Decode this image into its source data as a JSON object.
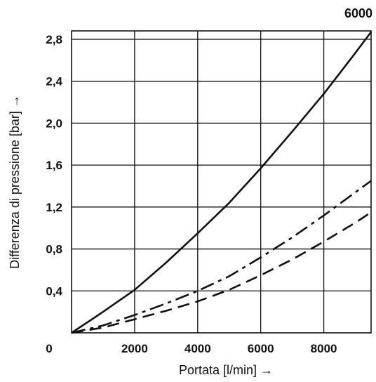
{
  "chart_data": {
    "type": "line",
    "title": "6000",
    "xlabel": "Portata [l/min] →",
    "ylabel": "Differenza di pressione [bar] →",
    "xlim": [
      0,
      9500
    ],
    "ylim": [
      0,
      2.88
    ],
    "x_ticks": [
      0,
      2000,
      4000,
      6000,
      8000
    ],
    "x_tick_labels": [
      "0",
      "2000",
      "4000",
      "6000",
      "8000"
    ],
    "y_ticks": [
      0.4,
      0.8,
      1.2,
      1.6,
      2.0,
      2.4,
      2.8
    ],
    "y_tick_labels": [
      "0,4",
      "0,8",
      "1,2",
      "1,6",
      "2,0",
      "2,4",
      "2,8"
    ],
    "grid": true,
    "legend": "none",
    "series": [
      {
        "style": "solid",
        "points": [
          [
            0,
            0
          ],
          [
            500,
            0.1
          ],
          [
            1000,
            0.2
          ],
          [
            2000,
            0.41
          ],
          [
            3000,
            0.67
          ],
          [
            4000,
            0.95
          ],
          [
            5000,
            1.24
          ],
          [
            6000,
            1.57
          ],
          [
            7000,
            1.92
          ],
          [
            8000,
            2.28
          ],
          [
            9000,
            2.67
          ],
          [
            9500,
            2.87
          ]
        ]
      },
      {
        "style": "dash-dot",
        "points": [
          [
            0,
            0
          ],
          [
            1000,
            0.07
          ],
          [
            2000,
            0.17
          ],
          [
            3000,
            0.28
          ],
          [
            4000,
            0.4
          ],
          [
            5000,
            0.54
          ],
          [
            6000,
            0.72
          ],
          [
            7000,
            0.91
          ],
          [
            8000,
            1.12
          ],
          [
            9000,
            1.34
          ],
          [
            9500,
            1.45
          ]
        ]
      },
      {
        "style": "dashed",
        "points": [
          [
            0,
            0
          ],
          [
            1000,
            0.05
          ],
          [
            2000,
            0.13
          ],
          [
            3000,
            0.21
          ],
          [
            4000,
            0.3
          ],
          [
            5000,
            0.41
          ],
          [
            6000,
            0.55
          ],
          [
            7000,
            0.7
          ],
          [
            8000,
            0.87
          ],
          [
            9000,
            1.05
          ],
          [
            9500,
            1.15
          ]
        ]
      }
    ]
  }
}
